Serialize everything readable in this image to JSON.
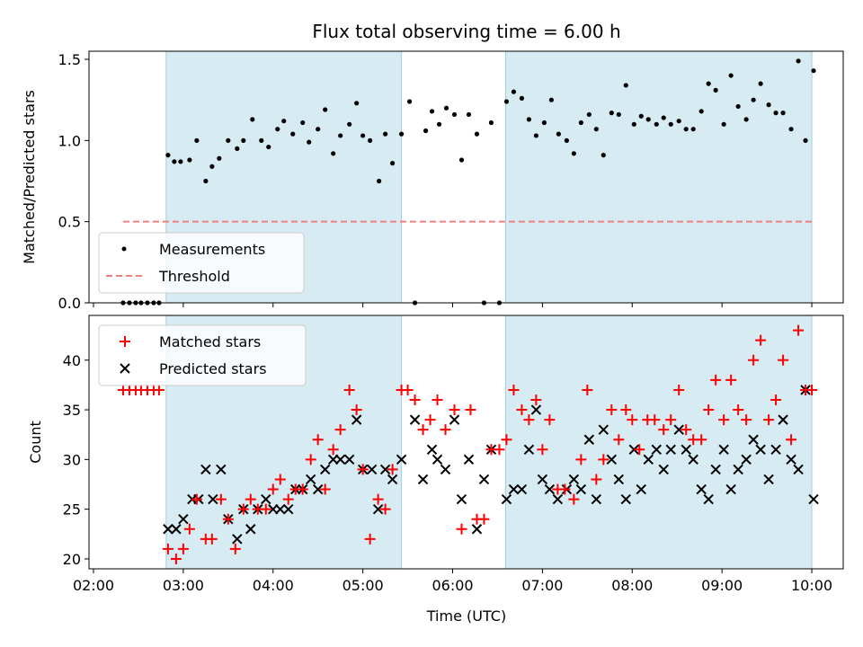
{
  "chart_data": [
    {
      "type": "scatter",
      "title": "Flux total observing time = 6.00 h",
      "xlabel": "",
      "ylabel": "Matched/Predicted stars",
      "xlim": [
        1.95,
        10.35
      ],
      "ylim": [
        0.0,
        1.55
      ],
      "yticks": [
        "0.0",
        "0.5",
        "1.0",
        "1.5"
      ],
      "shaded_intervals": [
        [
          2.81,
          5.43
        ],
        [
          6.59,
          10.0
        ]
      ],
      "legend": {
        "position": "lower-left",
        "entries": [
          "Measurements",
          "Threshold"
        ]
      },
      "series": [
        {
          "name": "Measurements",
          "marker": "dot",
          "color": "#000000",
          "x": [
            2.33,
            2.4,
            2.47,
            2.53,
            2.6,
            2.67,
            2.73,
            2.83,
            2.9,
            2.97,
            3.07,
            3.15,
            3.25,
            3.32,
            3.4,
            3.5,
            3.6,
            3.67,
            3.77,
            3.87,
            3.95,
            4.05,
            4.12,
            4.22,
            4.33,
            4.4,
            4.5,
            4.58,
            4.67,
            4.75,
            4.85,
            4.93,
            5.0,
            5.08,
            5.18,
            5.25,
            5.33,
            5.43,
            5.52,
            5.58,
            5.7,
            5.77,
            5.85,
            5.93,
            6.02,
            6.1,
            6.18,
            6.27,
            6.35,
            6.43,
            6.52,
            6.6,
            6.68,
            6.77,
            6.85,
            6.93,
            7.02,
            7.1,
            7.18,
            7.27,
            7.35,
            7.43,
            7.52,
            7.6,
            7.68,
            7.77,
            7.85,
            7.93,
            8.02,
            8.1,
            8.18,
            8.27,
            8.35,
            8.43,
            8.52,
            8.6,
            8.68,
            8.77,
            8.85,
            8.93,
            9.02,
            9.1,
            9.18,
            9.27,
            9.35,
            9.43,
            9.52,
            9.6,
            9.68,
            9.77,
            9.85,
            9.93,
            10.02
          ],
          "y": [
            0,
            0,
            0,
            0,
            0,
            0,
            0,
            0.91,
            0.87,
            0.87,
            0.88,
            1.0,
            0.75,
            0.84,
            0.89,
            1.0,
            0.95,
            1.0,
            1.13,
            1.0,
            0.96,
            1.07,
            1.12,
            1.04,
            1.11,
            0.99,
            1.07,
            1.19,
            0.92,
            1.03,
            1.1,
            1.23,
            1.03,
            1.0,
            0.75,
            1.04,
            0.86,
            1.04,
            1.24,
            0,
            1.06,
            1.18,
            1.1,
            1.2,
            1.16,
            0.88,
            1.16,
            1.04,
            0,
            1.11,
            0,
            1.24,
            1.3,
            1.26,
            1.13,
            1.03,
            1.11,
            1.25,
            1.04,
            1.0,
            0.92,
            1.11,
            1.16,
            1.07,
            0.91,
            1.17,
            1.16,
            1.34,
            1.1,
            1.15,
            1.13,
            1.1,
            1.14,
            1.1,
            1.12,
            1.07,
            1.07,
            1.18,
            1.35,
            1.31,
            1.1,
            1.4,
            1.21,
            1.13,
            1.25,
            1.35,
            1.22,
            1.17,
            1.17,
            1.07,
            1.49,
            1.0,
            1.43
          ]
        },
        {
          "name": "Threshold",
          "style": "dashed",
          "color": "#f08080",
          "x": [
            2.33,
            10.0
          ],
          "y": [
            0.5,
            0.5
          ]
        }
      ]
    },
    {
      "type": "scatter",
      "title": "",
      "xlabel": "Time (UTC)",
      "ylabel": "Count",
      "xlim": [
        1.95,
        10.35
      ],
      "ylim": [
        19,
        44.5
      ],
      "yticks": [
        "20",
        "25",
        "30",
        "35",
        "40"
      ],
      "xticks": [
        "02:00",
        "03:00",
        "04:00",
        "05:00",
        "06:00",
        "07:00",
        "08:00",
        "09:00",
        "10:00"
      ],
      "xtick_values": [
        2,
        3,
        4,
        5,
        6,
        7,
        8,
        9,
        10
      ],
      "shaded_intervals": [
        [
          2.81,
          5.43
        ],
        [
          6.59,
          10.0
        ]
      ],
      "legend": {
        "position": "upper-left",
        "entries": [
          "Matched stars",
          "Predicted stars"
        ]
      },
      "series": [
        {
          "name": "Matched stars",
          "marker": "plus",
          "color": "#ff0000",
          "x": [
            2.33,
            2.4,
            2.47,
            2.53,
            2.6,
            2.67,
            2.73,
            2.83,
            2.92,
            3.0,
            3.07,
            3.15,
            3.25,
            3.32,
            3.42,
            3.5,
            3.58,
            3.67,
            3.75,
            3.83,
            3.92,
            4.0,
            4.08,
            4.17,
            4.25,
            4.33,
            4.42,
            4.5,
            4.58,
            4.67,
            4.75,
            4.85,
            4.93,
            5.0,
            5.08,
            5.17,
            5.25,
            5.33,
            5.43,
            5.5,
            5.58,
            5.67,
            5.75,
            5.83,
            5.92,
            6.02,
            6.1,
            6.2,
            6.27,
            6.35,
            6.43,
            6.52,
            6.6,
            6.68,
            6.77,
            6.85,
            6.93,
            7.0,
            7.08,
            7.17,
            7.25,
            7.35,
            7.43,
            7.5,
            7.6,
            7.68,
            7.77,
            7.85,
            7.93,
            8.0,
            8.08,
            8.17,
            8.25,
            8.35,
            8.43,
            8.52,
            8.6,
            8.68,
            8.77,
            8.85,
            8.93,
            9.02,
            9.1,
            9.18,
            9.27,
            9.35,
            9.43,
            9.52,
            9.6,
            9.68,
            9.77,
            9.85,
            9.93,
            10.0
          ],
          "y": [
            37,
            37,
            37,
            37,
            37,
            37,
            37,
            21,
            20,
            21,
            23,
            26,
            22,
            22,
            26,
            24,
            21,
            25,
            26,
            25,
            25,
            27,
            28,
            26,
            27,
            27,
            30,
            32,
            27,
            31,
            33,
            37,
            35,
            29,
            22,
            26,
            25,
            29,
            37,
            37,
            36,
            33,
            34,
            36,
            33,
            35,
            23,
            35,
            24,
            24,
            31,
            31,
            32,
            37,
            35,
            34,
            36,
            31,
            34,
            27,
            27,
            26,
            30,
            37,
            28,
            30,
            35,
            32,
            35,
            34,
            31,
            34,
            34,
            33,
            34,
            37,
            33,
            32,
            32,
            35,
            38,
            34,
            38,
            35,
            34,
            40,
            42,
            34,
            36,
            40,
            32,
            43,
            37,
            37
          ]
        },
        {
          "name": "Predicted stars",
          "marker": "x",
          "color": "#000000",
          "x": [
            2.83,
            2.92,
            3.0,
            3.1,
            3.17,
            3.25,
            3.33,
            3.42,
            3.5,
            3.6,
            3.67,
            3.75,
            3.83,
            3.92,
            4.0,
            4.08,
            4.17,
            4.25,
            4.33,
            4.42,
            4.5,
            4.58,
            4.67,
            4.75,
            4.85,
            4.93,
            5.0,
            5.1,
            5.17,
            5.25,
            5.33,
            5.43,
            5.58,
            5.67,
            5.77,
            5.83,
            5.92,
            6.02,
            6.1,
            6.18,
            6.27,
            6.35,
            6.43,
            6.6,
            6.68,
            6.77,
            6.85,
            6.93,
            7.0,
            7.08,
            7.17,
            7.27,
            7.35,
            7.43,
            7.52,
            7.6,
            7.68,
            7.77,
            7.85,
            7.93,
            8.02,
            8.1,
            8.18,
            8.27,
            8.35,
            8.43,
            8.52,
            8.6,
            8.68,
            8.77,
            8.85,
            8.93,
            9.02,
            9.1,
            9.18,
            9.27,
            9.35,
            9.43,
            9.52,
            9.6,
            9.68,
            9.77,
            9.85,
            9.93,
            10.02
          ],
          "y": [
            23,
            23,
            24,
            26,
            26,
            29,
            26,
            29,
            24,
            22,
            25,
            23,
            25,
            26,
            25,
            25,
            25,
            27,
            27,
            28,
            27,
            29,
            30,
            30,
            30,
            34,
            29,
            29,
            25,
            29,
            28,
            30,
            34,
            28,
            31,
            30,
            29,
            34,
            26,
            30,
            23,
            28,
            31,
            26,
            27,
            27,
            31,
            35,
            28,
            27,
            26,
            27,
            28,
            27,
            32,
            26,
            33,
            30,
            28,
            26,
            31,
            27,
            30,
            31,
            29,
            31,
            33,
            31,
            30,
            27,
            26,
            29,
            31,
            27,
            29,
            30,
            32,
            31,
            28,
            31,
            34,
            30,
            29,
            37,
            26
          ]
        }
      ]
    }
  ]
}
